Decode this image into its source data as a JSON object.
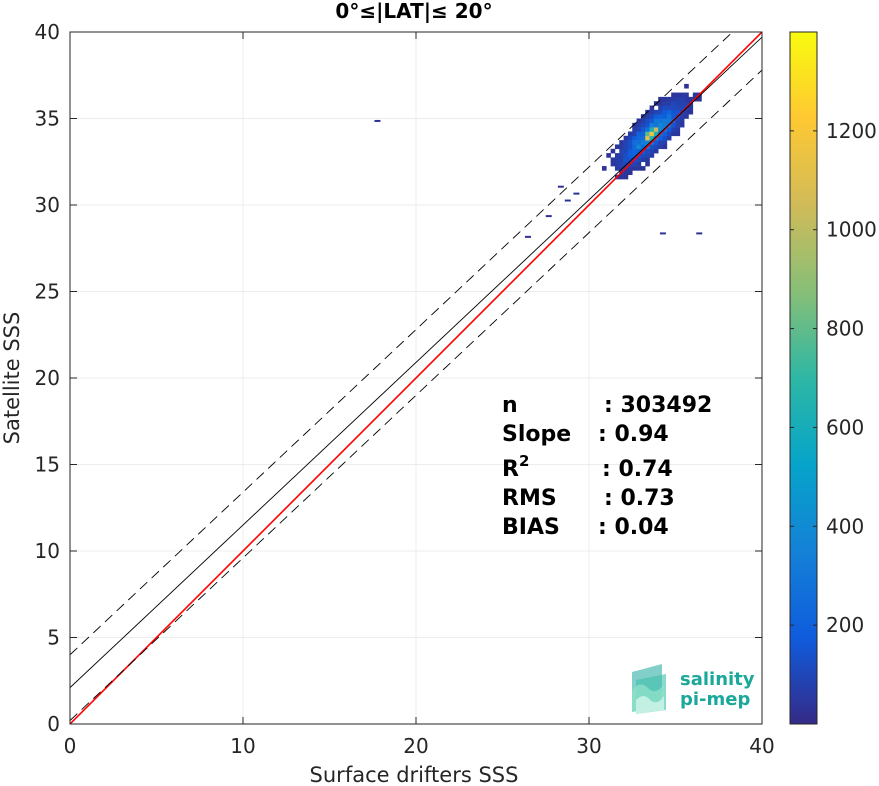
{
  "chart_data": {
    "type": "heatmap",
    "title": "0°≤|LAT|≤ 20°",
    "xlabel": "Surface drifters SSS",
    "ylabel": "Satellite SSS",
    "xlim": [
      0,
      40
    ],
    "ylim": [
      0,
      40
    ],
    "x_ticks": [
      0,
      10,
      20,
      30,
      40
    ],
    "y_ticks": [
      0,
      5,
      10,
      15,
      20,
      25,
      30,
      35,
      40
    ],
    "x_tick_labels": [
      "0",
      "10",
      "20",
      "30",
      "40"
    ],
    "y_tick_labels": [
      "0",
      "5",
      "10",
      "15",
      "20",
      "25",
      "30",
      "35",
      "40"
    ],
    "grid": true,
    "colorbar": {
      "colormap": "parula",
      "range": [
        0,
        1400
      ],
      "ticks": [
        200,
        400,
        600,
        800,
        1000,
        1200
      ],
      "tick_labels": [
        "200",
        "400",
        "600",
        "800",
        "1000",
        "1200"
      ]
    },
    "density_center": [
      33.5,
      34.0
    ],
    "density_peak": 1380,
    "lines": [
      {
        "name": "identity",
        "color": "#ff0000",
        "style": "solid",
        "points": [
          [
            0,
            0
          ],
          [
            40,
            40
          ]
        ]
      },
      {
        "name": "regression",
        "color": "#000000",
        "style": "solid",
        "points": [
          [
            0,
            2.1
          ],
          [
            40,
            39.7
          ]
        ]
      },
      {
        "name": "upper-bound",
        "color": "#000000",
        "style": "dashed",
        "points": [
          [
            0,
            4.0
          ],
          [
            40,
            41.6
          ]
        ]
      },
      {
        "name": "lower-bound",
        "color": "#000000",
        "style": "dashed",
        "points": [
          [
            0,
            0.2
          ],
          [
            40,
            37.8
          ]
        ]
      }
    ],
    "stats": [
      {
        "label": "n",
        "sup": "",
        "value": ": 303492"
      },
      {
        "label": "Slope",
        "sup": "",
        "value": ": 0.94"
      },
      {
        "label": "R",
        "sup": "2",
        "value": ": 0.74"
      },
      {
        "label": "RMS",
        "sup": "",
        "value": ": 0.73"
      },
      {
        "label": "BIAS",
        "sup": "",
        "value": ": 0.04"
      }
    ],
    "outliers": [
      [
        17.6,
        34.8
      ],
      [
        26.3,
        28.1
      ],
      [
        27.5,
        29.3
      ],
      [
        28.2,
        31.0
      ],
      [
        28.6,
        30.2
      ],
      [
        36.2,
        28.3
      ],
      [
        34.1,
        28.3
      ],
      [
        29.1,
        30.6
      ]
    ]
  },
  "logo": {
    "line1": "salinity",
    "line2": "pi-mep",
    "color": "#1aa89a"
  }
}
